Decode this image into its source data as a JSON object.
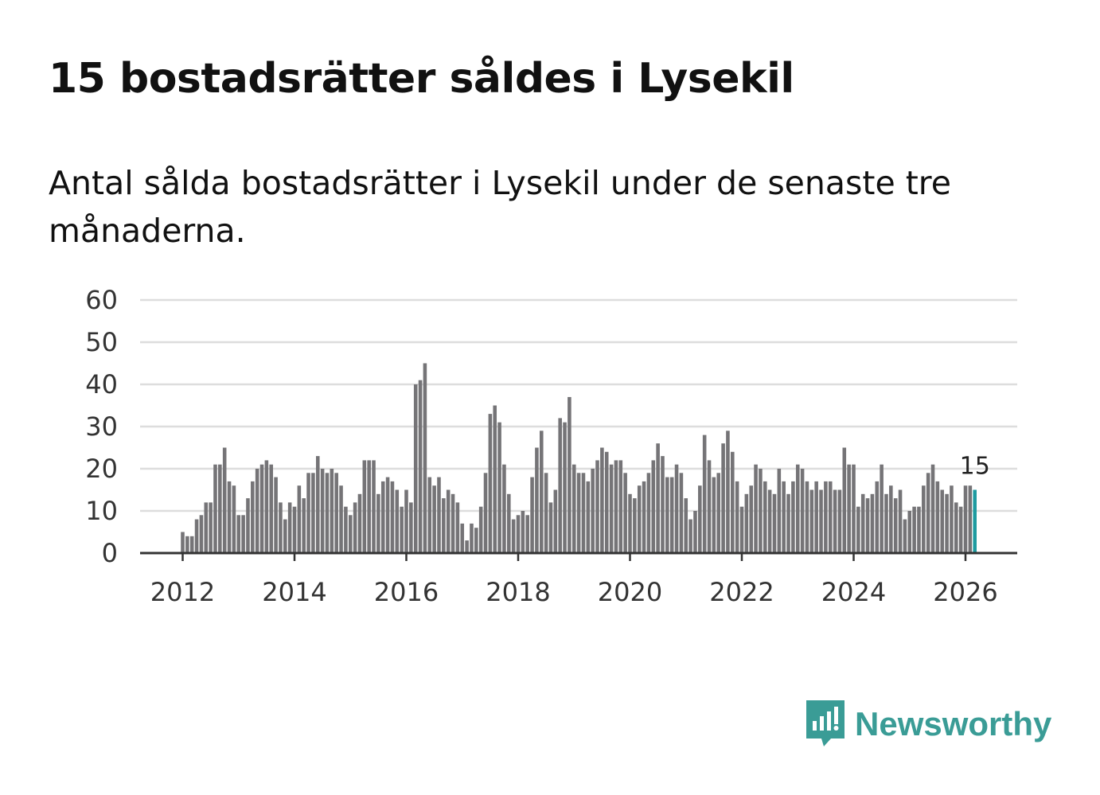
{
  "title": "15 bostadsrätter såldes i Lysekil",
  "subtitle": "Antal sålda bostadsrätter i Lysekil under de senaste tre månaderna.",
  "brand": {
    "name": "Newsworthy",
    "color": "#3a9c96"
  },
  "chart_data": {
    "type": "bar",
    "title": "15 bostadsrätter såldes i Lysekil",
    "xlabel": "",
    "ylabel": "",
    "ylim": [
      0,
      60
    ],
    "yticks": [
      0,
      10,
      20,
      30,
      40,
      50,
      60
    ],
    "xticks": [
      "2012",
      "2014",
      "2016",
      "2018",
      "2020",
      "2022",
      "2024",
      "2026"
    ],
    "start": "2012-01",
    "bar_color": "#757477",
    "highlight_color": "#1e9ba0",
    "highlight_index": 170,
    "annotation": {
      "text": "15",
      "index": 170
    },
    "values": [
      5,
      4,
      4,
      8,
      9,
      12,
      12,
      21,
      21,
      25,
      17,
      16,
      9,
      9,
      13,
      17,
      20,
      21,
      22,
      21,
      18,
      12,
      8,
      12,
      11,
      16,
      13,
      19,
      19,
      23,
      20,
      19,
      20,
      19,
      16,
      11,
      9,
      12,
      14,
      22,
      22,
      22,
      14,
      17,
      18,
      17,
      15,
      11,
      15,
      12,
      40,
      41,
      45,
      18,
      16,
      18,
      13,
      15,
      14,
      12,
      7,
      3,
      7,
      6,
      11,
      19,
      33,
      35,
      31,
      21,
      14,
      8,
      9,
      10,
      9,
      18,
      25,
      29,
      19,
      12,
      15,
      32,
      31,
      37,
      21,
      19,
      19,
      17,
      20,
      22,
      25,
      24,
      21,
      22,
      22,
      19,
      14,
      13,
      16,
      17,
      19,
      22,
      26,
      23,
      18,
      18,
      21,
      19,
      13,
      8,
      10,
      16,
      28,
      22,
      18,
      19,
      26,
      29,
      24,
      17,
      11,
      14,
      16,
      21,
      20,
      17,
      15,
      14,
      20,
      17,
      14,
      17,
      21,
      20,
      17,
      15,
      17,
      15,
      17,
      17,
      15,
      15,
      25,
      21,
      21,
      11,
      14,
      13,
      14,
      17,
      21,
      14,
      16,
      13,
      15,
      8,
      10,
      11,
      11,
      16,
      19,
      21,
      17,
      15,
      14,
      16,
      12,
      11,
      16,
      16,
      15
    ]
  }
}
